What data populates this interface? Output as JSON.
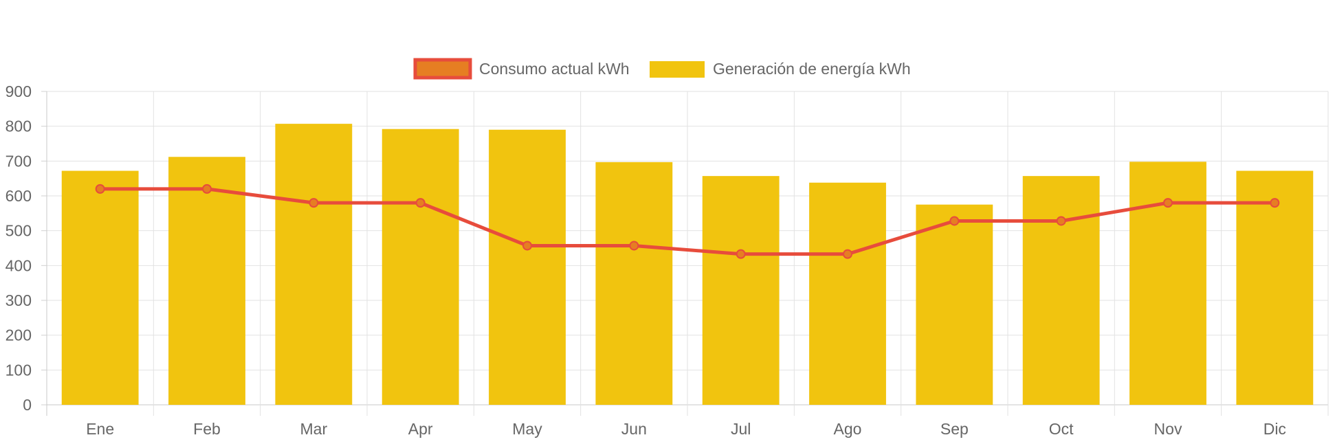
{
  "chart_data": {
    "type": "bar",
    "categories": [
      "Ene",
      "Feb",
      "Mar",
      "Apr",
      "May",
      "Jun",
      "Jul",
      "Ago",
      "Sep",
      "Oct",
      "Nov",
      "Dic"
    ],
    "series": [
      {
        "name": "Consumo actual kWh",
        "type": "line",
        "values": [
          620,
          620,
          580,
          580,
          457,
          457,
          433,
          433,
          528,
          528,
          580,
          580
        ],
        "color": "#e74c3c",
        "marker_color": "#e67e22"
      },
      {
        "name": "Generación de energía kWh",
        "type": "bar",
        "values": [
          672,
          712,
          807,
          792,
          790,
          697,
          657,
          638,
          575,
          657,
          698,
          672
        ],
        "color": "#f1c40f"
      }
    ],
    "y_ticks": [
      0,
      100,
      200,
      300,
      400,
      500,
      600,
      700,
      800,
      900
    ],
    "ylim": [
      0,
      900
    ],
    "grid": true,
    "legend_position": "top"
  }
}
